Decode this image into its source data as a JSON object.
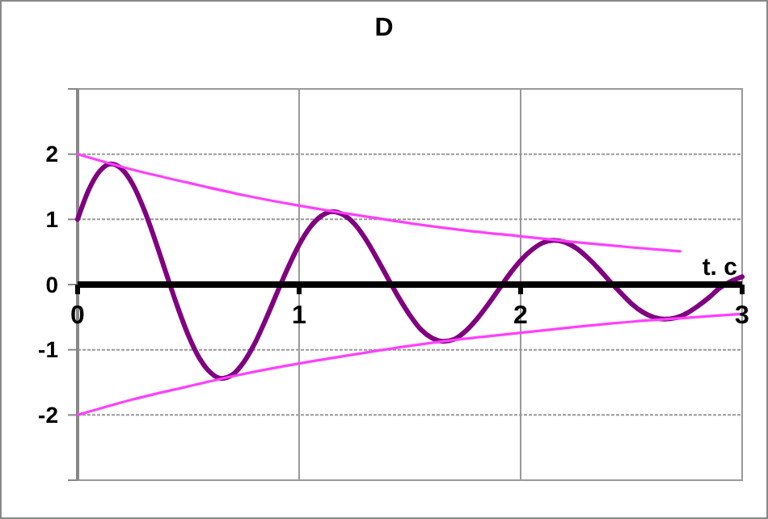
{
  "chart_data": {
    "type": "line",
    "title": "D",
    "xlabel": "t. c",
    "xlim": [
      0,
      3
    ],
    "xticks": [
      0,
      1,
      2,
      3
    ],
    "ylim": [
      -3,
      3
    ],
    "yticks": [
      {
        "value": -3,
        "label": null
      },
      -2,
      -1,
      0,
      1,
      2,
      {
        "value": 3,
        "label": null
      }
    ],
    "grid": true,
    "marker": "none",
    "line_style": "solid",
    "series": [
      {
        "color": "#800080",
        "x": [
          0,
          0.05,
          0.1,
          0.15,
          0.2,
          0.25,
          0.3,
          0.35,
          0.4,
          0.45,
          0.5,
          0.55,
          0.6,
          0.65,
          0.7,
          0.75,
          0.8,
          0.85,
          0.9,
          0.95,
          1,
          1.05,
          1.1,
          1.15,
          1.2,
          1.25,
          1.3,
          1.35,
          1.4,
          1.45,
          1.5,
          1.55,
          1.6,
          1.65,
          1.7,
          1.75,
          1.8,
          1.85,
          1.9,
          1.95,
          2,
          2.05,
          2.1,
          2.15,
          2.2,
          2.25,
          2.3,
          2.35,
          2.4,
          2.45,
          2.5,
          2.55,
          2.6,
          2.65,
          2.7,
          2.75,
          2.8,
          2.85,
          2.9,
          2.95,
          3
        ],
        "values": [
          1,
          1.45,
          1.74,
          1.85,
          1.77,
          1.53,
          1.15,
          0.68,
          0.17,
          -0.33,
          -0.78,
          -1.13,
          -1.35,
          -1.44,
          -1.38,
          -1.19,
          -0.9,
          -0.53,
          -0.13,
          0.26,
          0.61,
          0.88,
          1.05,
          1.12,
          1.07,
          0.93,
          0.7,
          0.41,
          0.1,
          -0.2,
          -0.47,
          -0.69,
          -0.82,
          -0.87,
          -0.84,
          -0.72,
          -0.54,
          -0.32,
          -0.08,
          0.16,
          0.37,
          0.53,
          0.64,
          0.68,
          0.65,
          0.56,
          0.42,
          0.25,
          0.06,
          -0.12,
          -0.29,
          -0.42,
          -0.5,
          -0.53,
          -0.51,
          -0.44,
          -0.33,
          -0.2,
          -0.05,
          0.05,
          0.12
        ]
      },
      {
        "color": "#ff40ff",
        "x": [
          0,
          0.25,
          0.5,
          0.75,
          1,
          1.25,
          1.5,
          1.75,
          2,
          2.25,
          2.5,
          2.72
        ],
        "values": [
          2,
          1.76,
          1.56,
          1.37,
          1.21,
          1.07,
          0.94,
          0.83,
          0.74,
          0.65,
          0.57,
          0.51
        ]
      },
      {
        "color": "#ff40ff",
        "x": [
          0,
          0.25,
          0.5,
          0.75,
          1,
          1.25,
          1.5,
          1.75,
          2,
          2.25,
          2.5,
          2.75,
          3
        ],
        "values": [
          -2,
          -1.76,
          -1.56,
          -1.37,
          -1.21,
          -1.07,
          -0.94,
          -0.83,
          -0.74,
          -0.65,
          -0.57,
          -0.51,
          -0.45
        ]
      }
    ]
  }
}
